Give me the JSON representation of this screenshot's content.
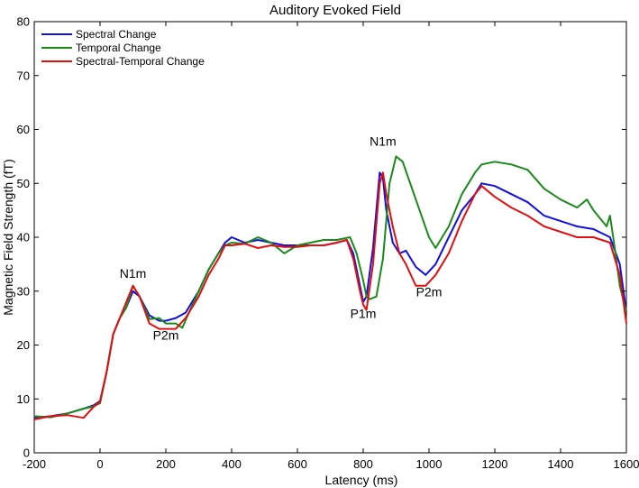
{
  "chart_data": {
    "type": "line",
    "title": "Auditory Evoked Field",
    "xlabel": "Latency (ms)",
    "ylabel": "Magnetic Field Strength (fT)",
    "xlim": [
      -200,
      1600
    ],
    "ylim": [
      0,
      80
    ],
    "xticks": [
      -200,
      0,
      200,
      400,
      600,
      800,
      1000,
      1200,
      1400,
      1600
    ],
    "yticks": [
      0,
      10,
      20,
      30,
      40,
      50,
      60,
      70,
      80
    ],
    "grid": false,
    "legend_position": "top-left",
    "series": [
      {
        "name": "Spectral Change",
        "color": "#1010e0",
        "x": [
          -200,
          -150,
          -100,
          -50,
          -20,
          0,
          20,
          40,
          60,
          80,
          100,
          120,
          150,
          180,
          200,
          230,
          260,
          300,
          330,
          360,
          380,
          400,
          440,
          480,
          520,
          560,
          600,
          640,
          680,
          720,
          750,
          770,
          790,
          800,
          810,
          830,
          850,
          860,
          870,
          890,
          910,
          930,
          960,
          990,
          1020,
          1060,
          1100,
          1140,
          1160,
          1200,
          1250,
          1300,
          1350,
          1400,
          1450,
          1500,
          1550,
          1580,
          1600
        ],
        "y": [
          6.5,
          6.8,
          7.3,
          8.2,
          8.8,
          9.6,
          15,
          22,
          25,
          27,
          30,
          29,
          25.5,
          24.5,
          24.5,
          25,
          26,
          30,
          34,
          37,
          39,
          40,
          39,
          39.5,
          39,
          38.5,
          38.5,
          38.5,
          38.5,
          39,
          39.5,
          37,
          31,
          28,
          29,
          38,
          52,
          51,
          45,
          39,
          37,
          37.5,
          34.5,
          33,
          35,
          40,
          45,
          48,
          50,
          49.5,
          48,
          46.5,
          44,
          43,
          42,
          41.5,
          40,
          35,
          26
        ]
      },
      {
        "name": "Temporal Change",
        "color": "#1a8a1a",
        "x": [
          -200,
          -150,
          -100,
          -50,
          -20,
          0,
          20,
          40,
          60,
          80,
          100,
          120,
          150,
          180,
          200,
          230,
          250,
          270,
          300,
          330,
          360,
          380,
          400,
          440,
          480,
          520,
          560,
          600,
          640,
          680,
          720,
          760,
          780,
          800,
          810,
          820,
          840,
          860,
          880,
          900,
          920,
          960,
          1000,
          1020,
          1060,
          1100,
          1140,
          1160,
          1200,
          1250,
          1300,
          1350,
          1400,
          1450,
          1480,
          1500,
          1520,
          1540,
          1550,
          1560,
          1580,
          1600
        ],
        "y": [
          6.8,
          6.6,
          7.3,
          8.2,
          8.6,
          9.2,
          15,
          22,
          25,
          27,
          31,
          29,
          24.8,
          25,
          24,
          24,
          23.2,
          26,
          30,
          34,
          37,
          38.5,
          39,
          38.8,
          40,
          39,
          37,
          38.5,
          39,
          39.5,
          39.5,
          40,
          37,
          32,
          29,
          28.5,
          29,
          36,
          50,
          55,
          54,
          47,
          40,
          38,
          42,
          48,
          52,
          53.5,
          54,
          53.5,
          52.5,
          49,
          47,
          45.5,
          47,
          45,
          43.5,
          42,
          44,
          40,
          31,
          26
        ]
      },
      {
        "name": "Spectral-Temporal Change",
        "color": "#e01010",
        "x": [
          -200,
          -150,
          -100,
          -50,
          -20,
          0,
          20,
          40,
          60,
          80,
          100,
          120,
          150,
          180,
          200,
          230,
          260,
          300,
          330,
          360,
          380,
          400,
          440,
          480,
          520,
          560,
          600,
          640,
          680,
          720,
          750,
          770,
          790,
          800,
          810,
          830,
          850,
          860,
          870,
          890,
          910,
          930,
          960,
          990,
          1020,
          1060,
          1100,
          1140,
          1160,
          1200,
          1250,
          1300,
          1350,
          1400,
          1450,
          1500,
          1550,
          1580,
          1600
        ],
        "y": [
          6.2,
          6.8,
          7,
          6.5,
          8.5,
          9.5,
          15,
          22,
          25,
          28,
          31,
          29,
          24,
          23,
          23,
          23,
          25,
          29,
          33,
          36,
          38.5,
          38.5,
          38.8,
          38,
          38.5,
          38.2,
          38.2,
          38.5,
          38.5,
          39,
          39.5,
          36,
          30,
          27.5,
          26.5,
          35,
          50,
          52,
          48,
          42,
          37,
          35,
          31,
          31,
          33,
          37,
          43,
          48,
          49.5,
          47.5,
          45.5,
          44,
          42,
          41,
          40,
          40,
          39,
          33,
          24
        ]
      }
    ],
    "annotations": [
      {
        "text": "N1m",
        "x": 100,
        "y": 32.5
      },
      {
        "text": "P2m",
        "x": 200,
        "y": 21
      },
      {
        "text": "N1m",
        "x": 860,
        "y": 57
      },
      {
        "text": "P1m",
        "x": 800,
        "y": 25
      },
      {
        "text": "P2m",
        "x": 1000,
        "y": 29
      }
    ]
  }
}
